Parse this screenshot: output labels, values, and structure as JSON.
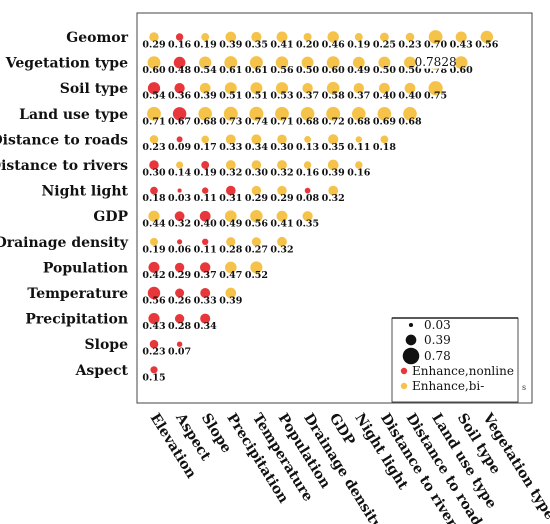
{
  "chart_data": {
    "type": "scatter",
    "subtype": "bubble-matrix",
    "title": "",
    "xlabel": "",
    "ylabel": "",
    "rows": [
      "Geomor",
      "Vegetation type",
      "Soil type",
      "Land use type",
      "Distance to roads",
      "Distance to rivers",
      "Night light",
      "GDP",
      "Drainage density",
      "Population",
      "Temperature",
      "Precipitation",
      "Slope",
      "Aspect"
    ],
    "columns": [
      "Elevation",
      "Aspect",
      "Slope",
      "Precipitation",
      "Temperature",
      "Population",
      "Drainage density",
      "GDP",
      "Night light",
      "Distance to rivers",
      "Distance to roads",
      "Land use type",
      "Soil type",
      "Vegetation type"
    ],
    "values": [
      [
        0.29,
        0.16,
        0.19,
        0.39,
        0.35,
        0.41,
        0.2,
        0.46,
        0.19,
        0.25,
        0.23,
        0.7,
        0.43,
        0.56
      ],
      [
        0.6,
        0.48,
        0.54,
        0.61,
        0.61,
        0.56,
        0.5,
        0.6,
        0.49,
        0.5,
        0.5,
        0.78,
        0.6
      ],
      [
        0.54,
        0.36,
        0.39,
        0.51,
        0.51,
        0.53,
        0.37,
        0.58,
        0.37,
        0.4,
        0.4,
        0.75
      ],
      [
        0.71,
        0.67,
        0.68,
        0.73,
        0.74,
        0.71,
        0.68,
        0.72,
        0.68,
        0.69,
        0.68
      ],
      [
        0.23,
        0.09,
        0.17,
        0.33,
        0.34,
        0.3,
        0.13,
        0.35,
        0.11,
        0.18
      ],
      [
        0.3,
        0.14,
        0.19,
        0.32,
        0.3,
        0.32,
        0.16,
        0.39,
        0.16
      ],
      [
        0.18,
        0.03,
        0.11,
        0.31,
        0.29,
        0.29,
        0.08,
        0.32
      ],
      [
        0.44,
        0.32,
        0.4,
        0.49,
        0.56,
        0.41,
        0.35
      ],
      [
        0.19,
        0.06,
        0.11,
        0.28,
        0.27,
        0.32
      ],
      [
        0.42,
        0.29,
        0.37,
        0.47,
        0.52
      ],
      [
        0.56,
        0.26,
        0.33,
        0.39
      ],
      [
        0.43,
        0.28,
        0.34
      ],
      [
        0.23,
        0.07
      ],
      [
        0.15
      ]
    ],
    "types": [
      [
        "b",
        "n",
        "b",
        "b",
        "b",
        "b",
        "b",
        "b",
        "b",
        "b",
        "b",
        "b",
        "b",
        "b"
      ],
      [
        "b",
        "n",
        "b",
        "b",
        "b",
        "b",
        "b",
        "b",
        "b",
        "b",
        "b",
        "b",
        "b"
      ],
      [
        "n",
        "n",
        "b",
        "b",
        "b",
        "b",
        "b",
        "b",
        "b",
        "b",
        "b",
        "b"
      ],
      [
        "b",
        "n",
        "b",
        "b",
        "b",
        "b",
        "b",
        "b",
        "b",
        "b",
        "b"
      ],
      [
        "b",
        "n",
        "b",
        "b",
        "b",
        "b",
        "b",
        "b",
        "b",
        "b"
      ],
      [
        "n",
        "b",
        "n",
        "b",
        "b",
        "b",
        "b",
        "b",
        "b"
      ],
      [
        "n",
        "n",
        "n",
        "n",
        "b",
        "b",
        "n",
        "b"
      ],
      [
        "b",
        "n",
        "n",
        "b",
        "b",
        "b",
        "b"
      ],
      [
        "b",
        "n",
        "n",
        "b",
        "b",
        "b"
      ],
      [
        "n",
        "n",
        "n",
        "b",
        "b"
      ],
      [
        "n",
        "n",
        "n",
        "b"
      ],
      [
        "n",
        "n",
        "n"
      ],
      [
        "n",
        "n"
      ],
      [
        "n"
      ]
    ],
    "highlight": {
      "row": 1,
      "col": 11,
      "label": "0.7828"
    },
    "legend": {
      "position": "bottom-right",
      "sizes": [
        {
          "label": "0.03",
          "value": 0.03
        },
        {
          "label": "0.39",
          "value": 0.39
        },
        {
          "label": "0.78",
          "value": 0.78
        }
      ],
      "types": [
        {
          "label": "Enhance,nonline",
          "key": "n"
        },
        {
          "label": "Enhance,bi-",
          "key": "b"
        }
      ],
      "extra_mark": "s"
    },
    "colors": {
      "nonlinear": "#e8373a",
      "bivariate": "#f5c24a"
    },
    "grid": false
  }
}
